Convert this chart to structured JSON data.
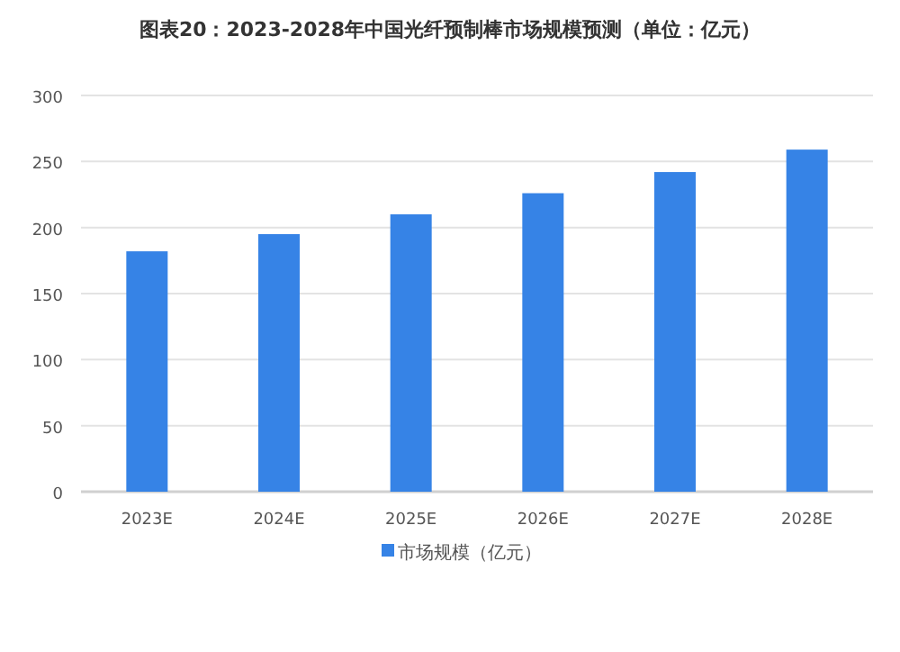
{
  "chart_data": {
    "type": "bar",
    "title": "图表20：2023-2028年中国光纤预制棒市场规模预测（单位：亿元）",
    "categories": [
      "2023E",
      "2024E",
      "2025E",
      "2026E",
      "2027E",
      "2028E"
    ],
    "series": [
      {
        "name": "市场规模（亿元）",
        "color": "#3683e6",
        "values": [
          182,
          195,
          210,
          226,
          242,
          259
        ]
      }
    ],
    "ylim": [
      0,
      300
    ],
    "yticks": [
      0,
      50,
      100,
      150,
      200,
      250,
      300
    ],
    "grid": "y",
    "legend": "bottom"
  }
}
